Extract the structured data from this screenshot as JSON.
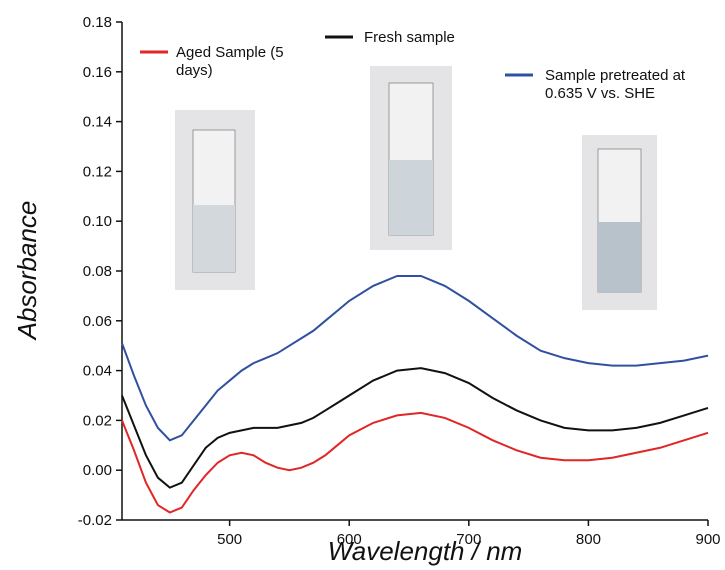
{
  "chart_data": {
    "type": "line",
    "x_label": "Wavelength / nm",
    "y_label": "Absorbance",
    "x": [
      410,
      420,
      430,
      440,
      450,
      460,
      470,
      480,
      490,
      500,
      510,
      520,
      530,
      540,
      550,
      560,
      570,
      580,
      590,
      600,
      620,
      640,
      660,
      680,
      700,
      720,
      740,
      760,
      780,
      800,
      820,
      840,
      860,
      880,
      900
    ],
    "series": [
      {
        "name": "Aged Sample (5 days)",
        "color": "#e02626",
        "values": [
          0.02,
          0.008,
          -0.005,
          -0.014,
          -0.017,
          -0.015,
          -0.008,
          -0.002,
          0.003,
          0.006,
          0.007,
          0.006,
          0.003,
          0.001,
          0.0,
          0.001,
          0.003,
          0.006,
          0.01,
          0.014,
          0.019,
          0.022,
          0.023,
          0.021,
          0.017,
          0.012,
          0.008,
          0.005,
          0.004,
          0.004,
          0.005,
          0.007,
          0.009,
          0.012,
          0.015
        ]
      },
      {
        "name": "Fresh sample",
        "color": "#111111",
        "values": [
          0.03,
          0.018,
          0.006,
          -0.003,
          -0.007,
          -0.005,
          0.002,
          0.009,
          0.013,
          0.015,
          0.016,
          0.017,
          0.017,
          0.017,
          0.018,
          0.019,
          0.021,
          0.024,
          0.027,
          0.03,
          0.036,
          0.04,
          0.041,
          0.039,
          0.035,
          0.029,
          0.024,
          0.02,
          0.017,
          0.016,
          0.016,
          0.017,
          0.019,
          0.022,
          0.025
        ]
      },
      {
        "name": "Sample pretreated at 0.635 V vs. SHE",
        "color": "#3050a0",
        "values": [
          0.051,
          0.038,
          0.026,
          0.017,
          0.012,
          0.014,
          0.02,
          0.026,
          0.032,
          0.036,
          0.04,
          0.043,
          0.045,
          0.047,
          0.05,
          0.053,
          0.056,
          0.06,
          0.064,
          0.068,
          0.074,
          0.078,
          0.078,
          0.074,
          0.068,
          0.061,
          0.054,
          0.048,
          0.045,
          0.043,
          0.042,
          0.042,
          0.043,
          0.044,
          0.046
        ]
      }
    ],
    "xlim": [
      410,
      900
    ],
    "xticks": [
      500,
      600,
      700,
      800,
      900
    ],
    "ylim": [
      -0.02,
      0.18
    ],
    "yticks": [
      -0.02,
      {
        "value": 0,
        "label": "0.00"
      },
      0.02,
      0.04,
      0.06,
      0.08,
      {
        "value": 0.1,
        "label": "0.10"
      },
      0.12,
      0.14,
      0.16,
      0.18
    ]
  }
}
